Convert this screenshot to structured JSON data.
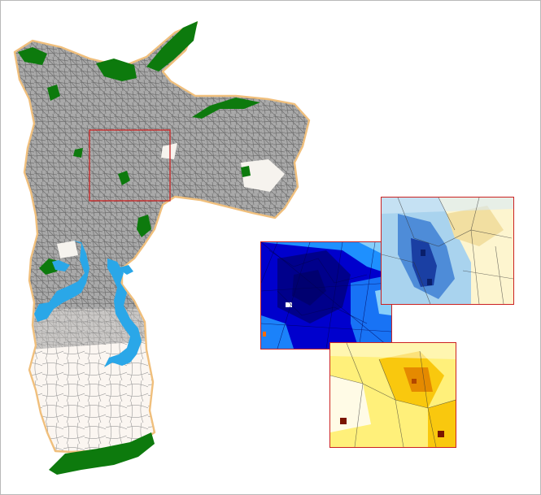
{
  "colors": {
    "background": "#ffffff",
    "frame_border": "#b9b9b9",
    "city_outline": "#f0bf7c",
    "road_network": "#8a8a8a",
    "parks_green": "#0d7a0d",
    "reservoir_blue": "#2aa7e8",
    "rural_fill": "#fbf6f1",
    "highlight_box": "#cc2222",
    "inset_border": "#cc2222"
  },
  "map": {
    "highlighted_region": "central-zone",
    "insets": [
      {
        "id": "blue-density",
        "palette": [
          "#00008b",
          "#0000cd",
          "#1e90ff",
          "#87cefa",
          "#ffffff",
          "#ff6a00"
        ]
      },
      {
        "id": "diverging-heat",
        "palette": [
          "#1a3fa3",
          "#4e8cd8",
          "#a9d3ee",
          "#fdf5cf",
          "#f2dfa1"
        ]
      },
      {
        "id": "yellow-heat",
        "palette": [
          "#fffbe6",
          "#fff07a",
          "#f9c80e",
          "#e58a00",
          "#7a1500"
        ]
      }
    ]
  }
}
